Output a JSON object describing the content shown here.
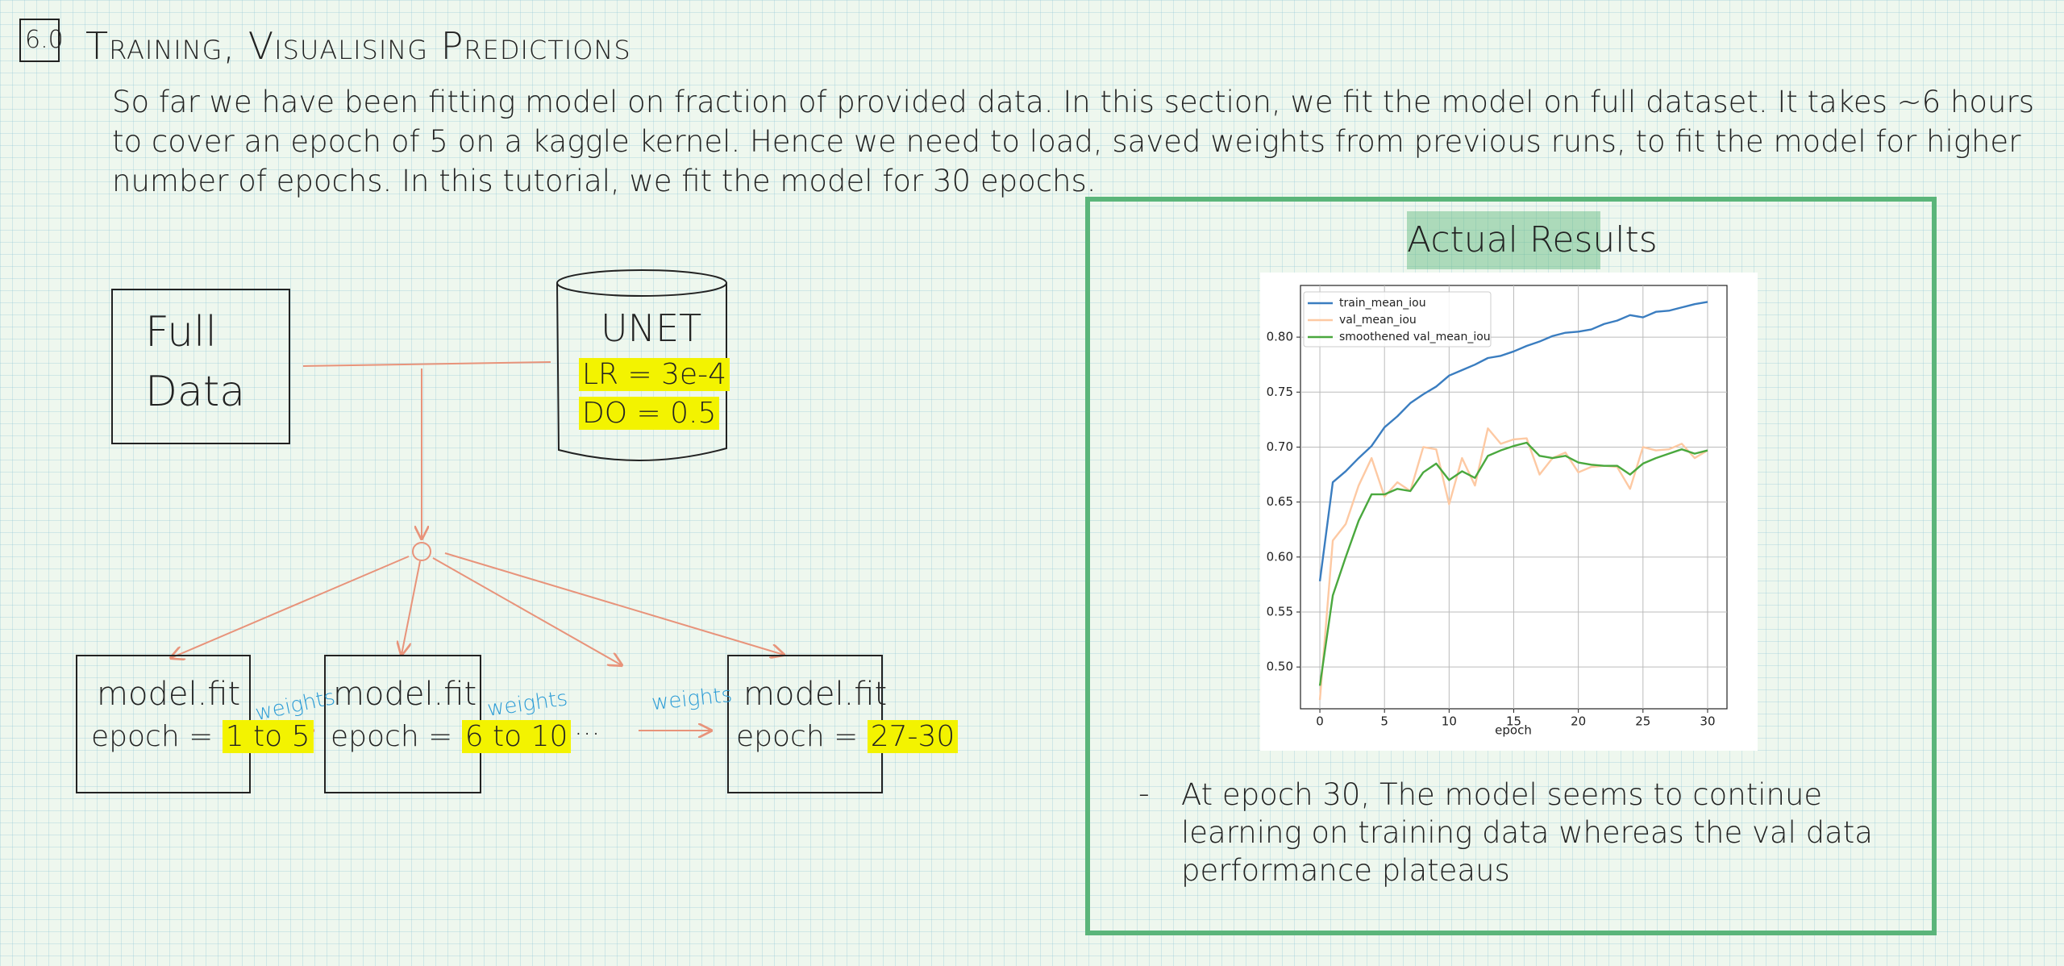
{
  "header": {
    "section": "6.0",
    "title": "Training, Visualising Predictions"
  },
  "intro": "So far we have been fitting model on fraction of provided data. In this section, we fit the model on full dataset. It takes ~6 hours to cover an epoch of 5 on a kaggle kernel. Hence we need to load, saved weights from previous runs, to fit the model for higher number of epochs. In this tutorial, we fit the model for 30 epochs.",
  "diagram": {
    "data_node": "Full Data",
    "model_node": {
      "label": "UNET",
      "params": [
        "LR = 3e-4",
        "DO = 0.5"
      ]
    },
    "fit_steps": [
      {
        "label": "model.fit",
        "epoch_label": "epoch =",
        "epochs": "1 to 5"
      },
      {
        "label": "model.fit",
        "epoch_label": "epoch =",
        "epochs": "6 to 10"
      },
      {
        "label": "model.fit",
        "epoch_label": "epoch =",
        "epochs": "27-30"
      }
    ],
    "edge_labels": [
      "weights",
      "weights",
      "weights"
    ],
    "ellipsis": "..."
  },
  "results": {
    "title": "Actual Results",
    "note_bullet": "-",
    "note": "At epoch 30, The model seems to continue learning on training data whereas the val data performance plateaus"
  },
  "chart_data": {
    "type": "line",
    "x_label": "epoch",
    "x": [
      0,
      1,
      2,
      3,
      4,
      5,
      6,
      7,
      8,
      9,
      10,
      11,
      12,
      13,
      14,
      15,
      16,
      17,
      18,
      19,
      20,
      21,
      22,
      23,
      24,
      25,
      26,
      27,
      28,
      29,
      30
    ],
    "series": [
      {
        "name": "train_mean_iou",
        "color": "#3a7dc0",
        "values": [
          0.578,
          0.668,
          0.678,
          0.69,
          0.701,
          0.718,
          0.728,
          0.74,
          0.748,
          0.755,
          0.765,
          0.77,
          0.775,
          0.781,
          0.783,
          0.787,
          0.792,
          0.796,
          0.801,
          0.804,
          0.805,
          0.807,
          0.812,
          0.815,
          0.82,
          0.818,
          0.823,
          0.824,
          0.827,
          0.83,
          0.832
        ]
      },
      {
        "name": "val_mean_iou",
        "color": "#fdc9a3",
        "values": [
          0.47,
          0.615,
          0.63,
          0.665,
          0.69,
          0.655,
          0.668,
          0.66,
          0.7,
          0.698,
          0.648,
          0.69,
          0.665,
          0.717,
          0.703,
          0.707,
          0.708,
          0.675,
          0.69,
          0.695,
          0.677,
          0.682,
          0.683,
          0.682,
          0.662,
          0.7,
          0.697,
          0.698,
          0.703,
          0.69,
          0.697
        ]
      },
      {
        "name": "smoothened val_mean_iou",
        "color": "#4aa83e",
        "values": [
          0.483,
          0.565,
          0.6,
          0.633,
          0.657,
          0.657,
          0.662,
          0.66,
          0.677,
          0.685,
          0.67,
          0.678,
          0.672,
          0.692,
          0.697,
          0.701,
          0.704,
          0.692,
          0.69,
          0.692,
          0.686,
          0.684,
          0.683,
          0.683,
          0.675,
          0.685,
          0.69,
          0.694,
          0.698,
          0.694,
          0.697
        ]
      }
    ],
    "xlim": [
      -1.5,
      31.5
    ],
    "xticks": [
      0,
      5,
      10,
      15,
      20,
      25,
      30
    ],
    "ylim": [
      0.462,
      0.847
    ],
    "yticks": [
      {
        "value": 0.5,
        "label": "0.50"
      },
      0.55,
      {
        "value": 0.6,
        "label": "0.60"
      },
      0.65,
      {
        "value": 0.7,
        "label": "0.70"
      },
      0.75,
      {
        "value": 0.8,
        "label": "0.80"
      }
    ],
    "grid": true,
    "legend": "upper left"
  }
}
